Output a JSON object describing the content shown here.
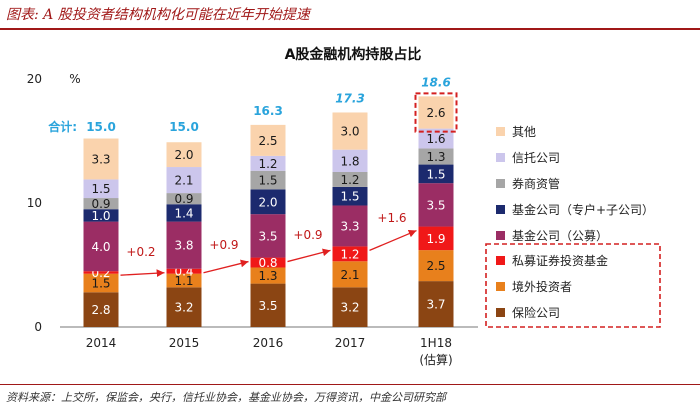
{
  "figure_title": "图表: A 股投资者结构机构化可能在近年开始提速",
  "source": "资料来源：上交所，保监会，央行，信托业协会，基金业协会，万得资讯，中金公司研究部",
  "chart_data": {
    "type": "bar",
    "stacked": true,
    "title": "A股金融机构持股占比",
    "ylabel": "%",
    "ylim": [
      0,
      20
    ],
    "yticks": [
      0,
      10,
      20
    ],
    "categories": [
      "2014",
      "2015",
      "2016",
      "2017",
      "1H18"
    ],
    "category_sublabels": [
      "",
      "",
      "",
      "",
      "(估算)"
    ],
    "series": [
      {
        "name": "保险公司",
        "color": "#8b4513",
        "values": [
          2.8,
          3.2,
          3.5,
          3.2,
          3.7
        ]
      },
      {
        "name": "境外投资者",
        "color": "#e8801c",
        "values": [
          1.5,
          1.1,
          1.3,
          2.1,
          2.5
        ]
      },
      {
        "name": "私募证券投资基金",
        "color": "#f01818",
        "values": [
          0.2,
          0.4,
          0.8,
          1.2,
          1.9
        ]
      },
      {
        "name": "基金公司（公募）",
        "color": "#9b2d64",
        "values": [
          4.0,
          3.8,
          3.5,
          3.3,
          3.5
        ]
      },
      {
        "name": "基金公司（专户+子公司）",
        "color": "#1c2a6e",
        "values": [
          1.0,
          1.4,
          2.0,
          1.5,
          1.5
        ]
      },
      {
        "name": "券商资管",
        "color": "#a6a6a6",
        "values": [
          0.9,
          0.9,
          1.5,
          1.2,
          1.3
        ]
      },
      {
        "name": "信托公司",
        "color": "#ccc6ec",
        "values": [
          1.5,
          2.1,
          1.2,
          1.8,
          1.6
        ]
      },
      {
        "name": "其他",
        "color": "#fad3ad",
        "values": [
          3.3,
          2.0,
          2.5,
          3.0,
          2.6
        ]
      }
    ],
    "totals": [
      15.0,
      15.0,
      16.3,
      17.3,
      18.6
    ],
    "total_prefix": "合计:",
    "growth_annotations": [
      "+0.2",
      "+0.9",
      "+0.9",
      "+1.6"
    ],
    "legend_order": [
      "其他",
      "信托公司",
      "券商资管",
      "基金公司（专户+子公司）",
      "基金公司（公募）",
      "私募证券投资基金",
      "境外投资者",
      "保险公司"
    ],
    "highlighted_legend_group": [
      "私募证券投资基金",
      "境外投资者",
      "保险公司"
    ],
    "highlighted_bar_segment": {
      "category": "1H18",
      "series": "其他",
      "value": 2.6
    }
  }
}
